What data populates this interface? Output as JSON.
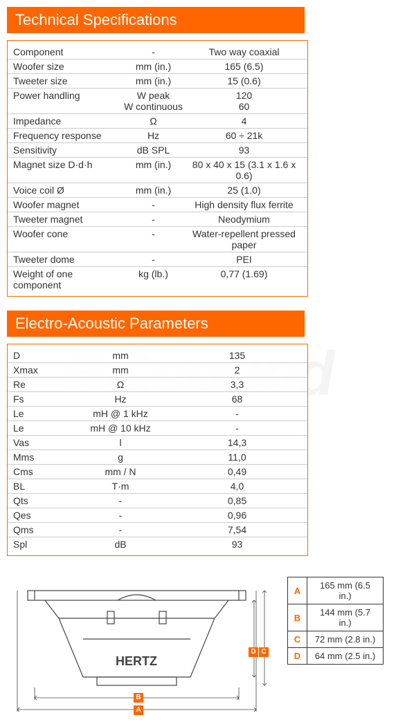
{
  "watermark_text": "RGsound",
  "tech_specs": {
    "title": "Technical Specifications",
    "rows": [
      {
        "label": "Component",
        "unit": "-",
        "value": "Two way coaxial"
      },
      {
        "label": "Woofer size",
        "unit": "mm (in.)",
        "value": "165 (6.5)"
      },
      {
        "label": "Tweeter size",
        "unit": "mm (in.)",
        "value": "15 (0.6)"
      },
      {
        "label": "Power handling",
        "unit": "W peak",
        "value": "120",
        "unit2": "W continuous",
        "value2": "60"
      },
      {
        "label": "Impedance",
        "unit": "Ω",
        "value": "4"
      },
      {
        "label": "Frequency response",
        "unit": "Hz",
        "value": "60 ÷ 21k"
      },
      {
        "label": "Sensitivity",
        "unit": "dB SPL",
        "value": "93"
      },
      {
        "label": "Magnet size D·d·h",
        "unit": "mm (in.)",
        "value": "80 x 40 x 15 (3.1 x 1.6 x 0.6)"
      },
      {
        "label": "Voice coil Ø",
        "unit": "mm (in.)",
        "value": "25 (1.0)"
      },
      {
        "label": "Woofer magnet",
        "unit": "-",
        "value": "High density flux ferrite"
      },
      {
        "label": "Tweeter magnet",
        "unit": "-",
        "value": "Neodymium"
      },
      {
        "label": "Woofer cone",
        "unit": "-",
        "value": "Water-repellent pressed paper"
      },
      {
        "label": "Tweeter dome",
        "unit": "-",
        "value": "PEI"
      },
      {
        "label": "Weight of one component",
        "unit": "kg (lb.)",
        "value": "0,77 (1.69)"
      }
    ]
  },
  "ea_params": {
    "title": "Electro-Acoustic Parameters",
    "rows": [
      {
        "label": "D",
        "unit": "mm",
        "value": "135"
      },
      {
        "label": "Xmax",
        "unit": "mm",
        "value": "2"
      },
      {
        "label": "Re",
        "unit": "Ω",
        "value": "3,3"
      },
      {
        "label": "Fs",
        "unit": "Hz",
        "value": "68"
      },
      {
        "label": "Le",
        "unit": "mH @ 1 kHz",
        "value": "-"
      },
      {
        "label": "Le",
        "unit": "mH @ 10 kHz",
        "value": "-"
      },
      {
        "label": "Vas",
        "unit": "l",
        "value": "14,3"
      },
      {
        "label": "Mms",
        "unit": "g",
        "value": "11,0"
      },
      {
        "label": "Cms",
        "unit": "mm / N",
        "value": "0,49"
      },
      {
        "label": "BL",
        "unit": "T·m",
        "value": "4,0"
      },
      {
        "label": "Qts",
        "unit": "-",
        "value": "0,85"
      },
      {
        "label": "Qes",
        "unit": "-",
        "value": "0,96"
      },
      {
        "label": "Qms",
        "unit": "-",
        "value": "7,54"
      },
      {
        "label": "Spl",
        "unit": "dB",
        "value": "93"
      }
    ]
  },
  "dimensions": {
    "rows": [
      {
        "letter": "A",
        "value": "165 mm (6.5 in.)"
      },
      {
        "letter": "B",
        "value": "144 mm (5.7 in.)"
      },
      {
        "letter": "C",
        "value": "72 mm (2.8 in.)"
      },
      {
        "letter": "D",
        "value": "64 mm (2.5 in.)"
      }
    ]
  },
  "diagram": {
    "brand_label": "HERTZ",
    "stroke_color": "#444444",
    "accent_color": "#ff6600",
    "badge_A": "A",
    "badge_B": "B",
    "badge_C": "C",
    "badge_D": "D"
  },
  "colors": {
    "header_bg": "#ff6600",
    "header_text": "#ffffff",
    "border": "#ff6600",
    "row_divider": "#cccccc",
    "text": "#333333"
  }
}
